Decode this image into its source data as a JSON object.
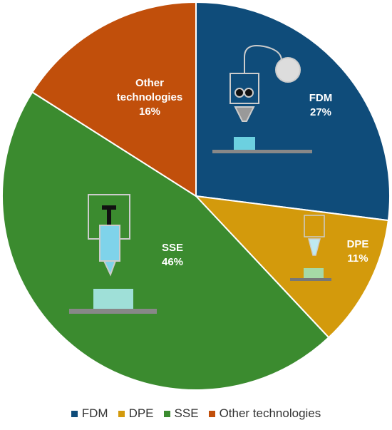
{
  "chart_data": {
    "type": "pie",
    "categories": [
      "FDM",
      "DPE",
      "SSE",
      "Other technologies"
    ],
    "values": [
      27,
      11,
      46,
      16
    ],
    "value_labels": [
      "27%",
      "11%",
      "46%",
      "16%"
    ],
    "colors": [
      "#0f4c7a",
      "#d39a0c",
      "#3b8b2f",
      "#c14f0b"
    ]
  }
}
